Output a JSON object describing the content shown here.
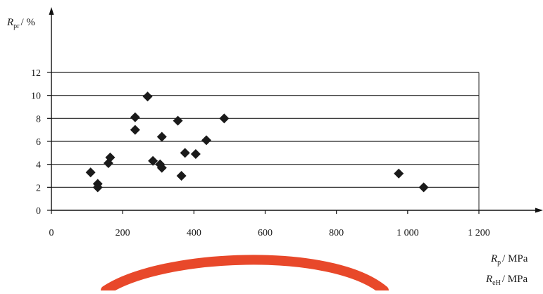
{
  "chart_data": {
    "type": "scatter",
    "title": "",
    "ylabel": {
      "symbol": "R",
      "subscript": "pr",
      "unit": "/ %"
    },
    "xlabels": [
      {
        "symbol": "R",
        "subscript": "p",
        "unit": "/ MPa"
      },
      {
        "symbol": "R",
        "subscript": "eH",
        "unit": "/ MPa"
      }
    ],
    "xlim": [
      0,
      1200
    ],
    "ylim": [
      0,
      12
    ],
    "xticks": [
      0,
      200,
      400,
      600,
      800,
      1000,
      1200
    ],
    "xtick_labels": [
      "0",
      "200",
      "400",
      "600",
      "800",
      "1 000",
      "1 200"
    ],
    "yticks": [
      0,
      2,
      4,
      6,
      8,
      10,
      12
    ],
    "ytick_labels": [
      "0",
      "2",
      "4",
      "6",
      "8",
      "10",
      "12"
    ],
    "grid": "horizontal",
    "marker": "diamond",
    "marker_color": "#1a1a1a",
    "points": [
      {
        "x": 110,
        "y": 3.3
      },
      {
        "x": 130,
        "y": 2.3
      },
      {
        "x": 130,
        "y": 2.0
      },
      {
        "x": 160,
        "y": 4.1
      },
      {
        "x": 165,
        "y": 4.6
      },
      {
        "x": 235,
        "y": 8.1
      },
      {
        "x": 235,
        "y": 7.0
      },
      {
        "x": 270,
        "y": 9.9
      },
      {
        "x": 285,
        "y": 4.3
      },
      {
        "x": 305,
        "y": 4.0
      },
      {
        "x": 310,
        "y": 3.7
      },
      {
        "x": 310,
        "y": 6.4
      },
      {
        "x": 355,
        "y": 7.8
      },
      {
        "x": 365,
        "y": 3.0
      },
      {
        "x": 375,
        "y": 5.0
      },
      {
        "x": 405,
        "y": 4.9
      },
      {
        "x": 435,
        "y": 6.1
      },
      {
        "x": 485,
        "y": 8.0
      },
      {
        "x": 975,
        "y": 3.2
      },
      {
        "x": 1045,
        "y": 2.0
      }
    ]
  },
  "stamp_color": "#e8482a"
}
